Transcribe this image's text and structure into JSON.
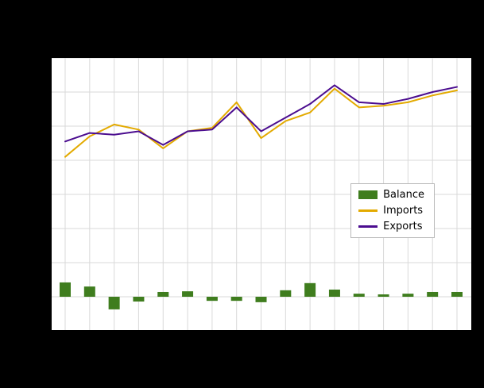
{
  "legend": {
    "items": [
      {
        "label": "Balance",
        "type": "bar",
        "color": "#3f7d1e"
      },
      {
        "label": "Imports",
        "type": "line",
        "color": "#e3aa00"
      },
      {
        "label": "Exports",
        "type": "line",
        "color": "#4b0d8f"
      }
    ]
  },
  "colors": {
    "background": "#000000",
    "plot_background": "#ffffff",
    "gridline": "#d9d9d9",
    "axis": "#000000"
  },
  "chart_data": {
    "type": "bar+line",
    "title": "",
    "xlabel": "",
    "ylabel": "",
    "x": [
      1,
      2,
      3,
      4,
      5,
      6,
      7,
      8,
      9,
      10,
      11,
      12,
      13,
      14,
      15,
      16,
      17
    ],
    "ylim": [
      -10,
      70
    ],
    "grid": true,
    "legend_position": "inside-right",
    "bar_series": {
      "name": "Balance",
      "color": "#3f7d1e",
      "values": [
        4.2,
        3,
        -3.7,
        -1.4,
        1.4,
        1.6,
        -1.2,
        -1.2,
        -1.6,
        1.9,
        4,
        2.1,
        0.9,
        0.7,
        0.9,
        1.4,
        1.4
      ]
    },
    "series": [
      {
        "name": "Imports",
        "color": "#e3aa00",
        "values": [
          41,
          47,
          50.5,
          49,
          43.5,
          48.5,
          49.5,
          57,
          46.5,
          51.5,
          54,
          61,
          55.5,
          56,
          57,
          59,
          60.5
        ]
      },
      {
        "name": "Exports",
        "color": "#4b0d8f",
        "values": [
          45.5,
          48,
          47.5,
          48.5,
          44.5,
          48.5,
          49,
          55.5,
          48.5,
          52.5,
          56.5,
          62,
          57,
          56.5,
          58,
          60,
          61.5
        ]
      }
    ]
  }
}
